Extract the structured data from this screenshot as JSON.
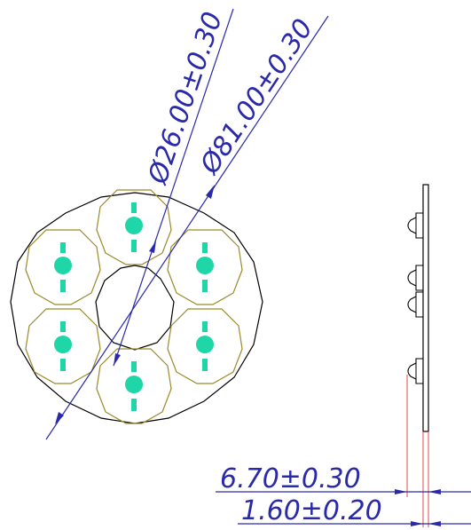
{
  "dimensions": {
    "inner_diameter": "Ø26.00±0.30",
    "outer_diameter": "Ø81.00±0.30",
    "height_overall": "6.70±0.30",
    "board_thickness": "1.60±0.20"
  },
  "colors": {
    "outline": "#000000",
    "dimension": "#2a2aa8",
    "led_outline": "#9b8a2a",
    "led_fill": "#1fd6a8",
    "side_lead": "#e24a4a"
  }
}
